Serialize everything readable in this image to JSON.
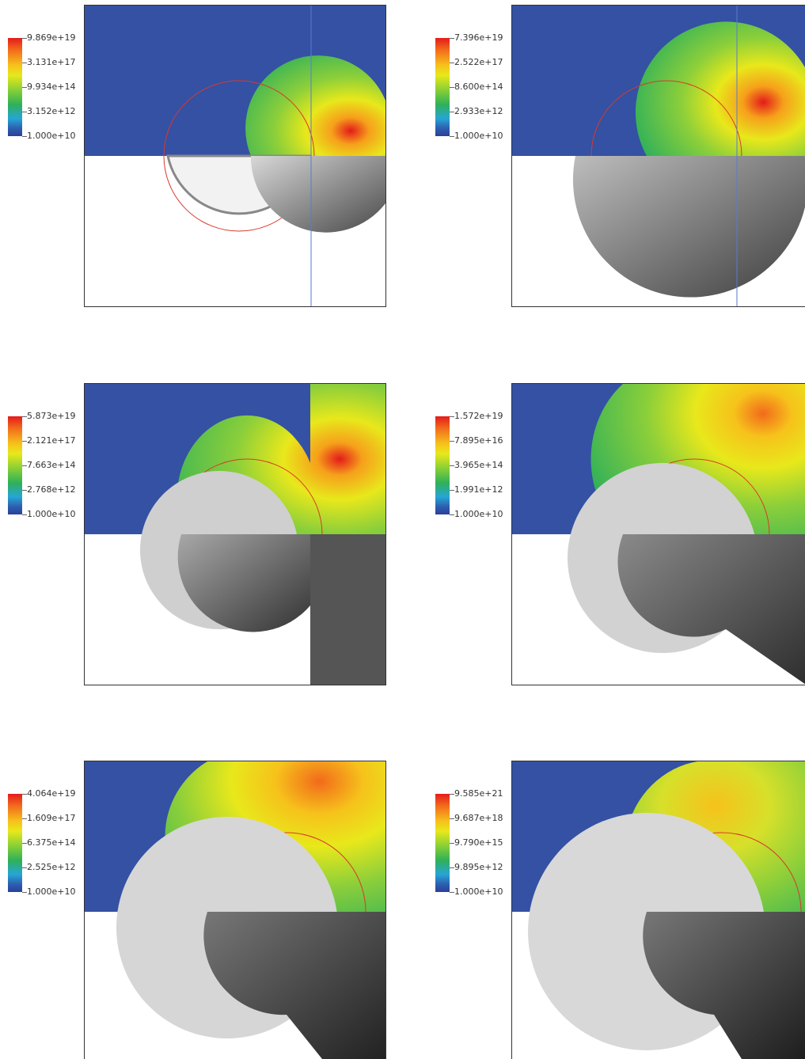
{
  "panels": [
    {
      "id": "p1",
      "colorbar": [
        "9.869e+19",
        "3.131e+17",
        "9.934e+14",
        "3.152e+12",
        "1.000e+10"
      ]
    },
    {
      "id": "p2",
      "colorbar": [
        "7.396e+19",
        "2.522e+17",
        "8.600e+14",
        "2.933e+12",
        "1.000e+10"
      ]
    },
    {
      "id": "p3",
      "colorbar": [
        "5.873e+19",
        "2.121e+17",
        "7.663e+14",
        "2.768e+12",
        "1.000e+10"
      ]
    },
    {
      "id": "p4",
      "colorbar": [
        "1.572e+19",
        "7.895e+16",
        "3.965e+14",
        "1.991e+12",
        "1.000e+10"
      ]
    },
    {
      "id": "p5",
      "colorbar": [
        "4.064e+19",
        "1.609e+17",
        "6.375e+14",
        "2.525e+12",
        "1.000e+10"
      ]
    },
    {
      "id": "p6",
      "colorbar": [
        "9.585e+21",
        "9.687e+18",
        "9.790e+15",
        "9.895e+12",
        "1.000e+10"
      ]
    }
  ],
  "colors": {
    "background_blue": "#3451a3",
    "shock_red": "#d83a2a",
    "schlieren_gray": "#7a7a7a"
  }
}
